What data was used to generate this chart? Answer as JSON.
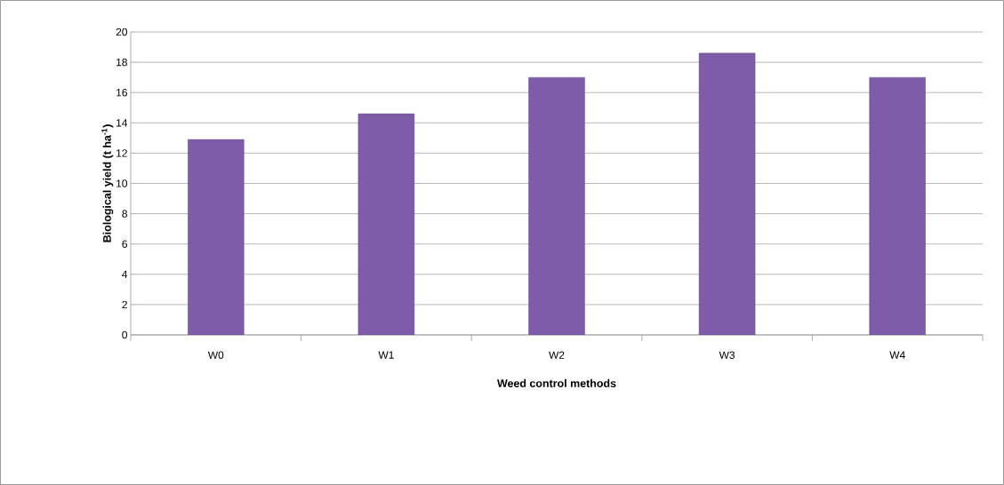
{
  "chart_data": {
    "type": "bar",
    "xlabel": "Weed control methods",
    "ylabel": "Biological yield (t ha$^{-1}$)",
    "categories": [
      "W0",
      "W1",
      "W2",
      "W3",
      "W4"
    ],
    "values": [
      12.9,
      14.6,
      17.0,
      18.6,
      17.0
    ],
    "color": "#7e5ca8",
    "ylim": [
      0,
      20
    ],
    "yticks": [
      0,
      2,
      4,
      6,
      8,
      10,
      12,
      14,
      16,
      18,
      20
    ],
    "grid": "y"
  }
}
